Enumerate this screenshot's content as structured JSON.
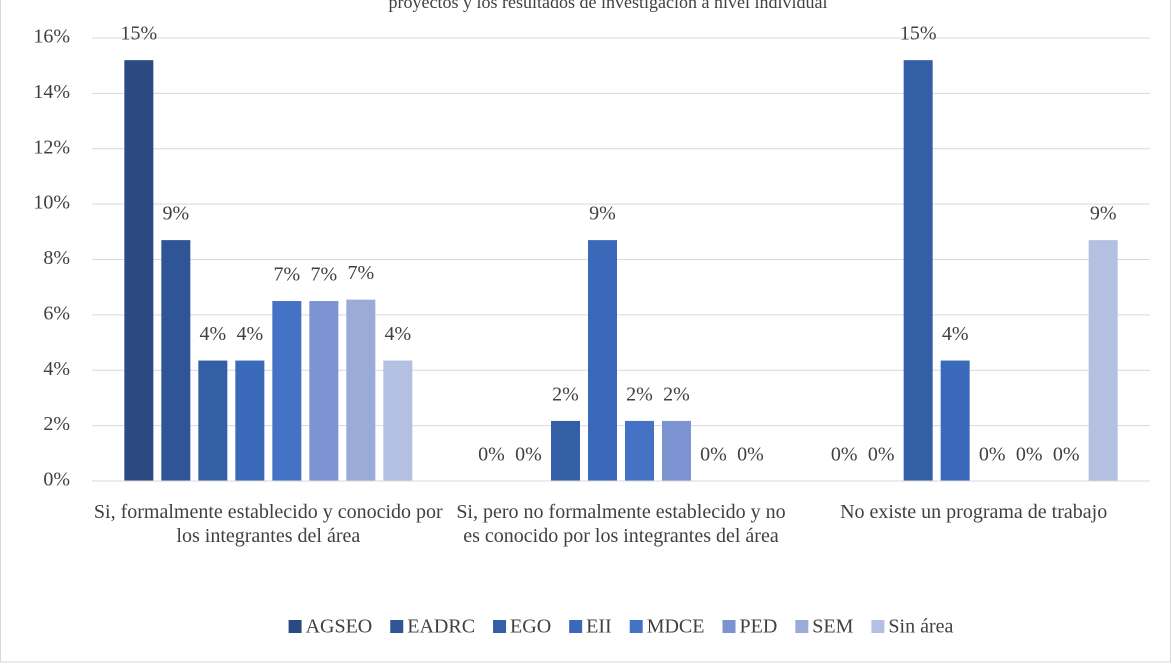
{
  "chart_data": {
    "type": "bar",
    "title": "proyectos y los resultados de investigación a nivel individual",
    "categories": [
      "Si, formalmente establecido y conocido por los integrantes del área",
      "Si, pero no formalmente establecido y no es conocido por los integrantes del área",
      "No existe un programa de trabajo"
    ],
    "series": [
      {
        "name": "AGSEO",
        "color": "#2c4a82",
        "values": [
          15.2,
          0,
          0
        ],
        "value_labels": [
          "15%",
          "0%",
          "0%"
        ]
      },
      {
        "name": "EADRC",
        "color": "#2f5597",
        "values": [
          8.7,
          0,
          0
        ],
        "value_labels": [
          "9%",
          "0%",
          "0%"
        ]
      },
      {
        "name": "EGO",
        "color": "#345ea6",
        "values": [
          4.35,
          2.17,
          15.2
        ],
        "value_labels": [
          "4%",
          "2%",
          "15%"
        ]
      },
      {
        "name": "EII",
        "color": "#3a69ba",
        "values": [
          4.35,
          8.7,
          4.35
        ],
        "value_labels": [
          "4%",
          "9%",
          "4%"
        ]
      },
      {
        "name": "MDCE",
        "color": "#4472c4",
        "values": [
          6.5,
          2.17,
          0
        ],
        "value_labels": [
          "7%",
          "2%",
          "0%"
        ]
      },
      {
        "name": "PED",
        "color": "#7b93d1",
        "values": [
          6.5,
          2.17,
          0
        ],
        "value_labels": [
          "7%",
          "2%",
          "0%"
        ]
      },
      {
        "name": "SEM",
        "color": "#9babd8",
        "values": [
          6.55,
          0,
          0
        ],
        "value_labels": [
          "7%",
          "0%",
          "0%"
        ]
      },
      {
        "name": "Sin área",
        "color": "#b4c0e2",
        "values": [
          4.35,
          0,
          8.7
        ],
        "value_labels": [
          "4%",
          "0%",
          "9%"
        ]
      }
    ],
    "ylim": [
      0,
      16
    ],
    "yticks": [
      {
        "value": 0,
        "label": "0%"
      },
      {
        "value": 2,
        "label": "2%"
      },
      {
        "value": 4,
        "label": "4%"
      },
      {
        "value": 6,
        "label": "6%"
      },
      {
        "value": 8,
        "label": "8%"
      },
      {
        "value": 10,
        "label": "10%"
      },
      {
        "value": 12,
        "label": "12%"
      },
      {
        "value": 14,
        "label": "14%"
      },
      {
        "value": 16,
        "label": "16%"
      }
    ],
    "grid": true,
    "legend": "bottom"
  }
}
